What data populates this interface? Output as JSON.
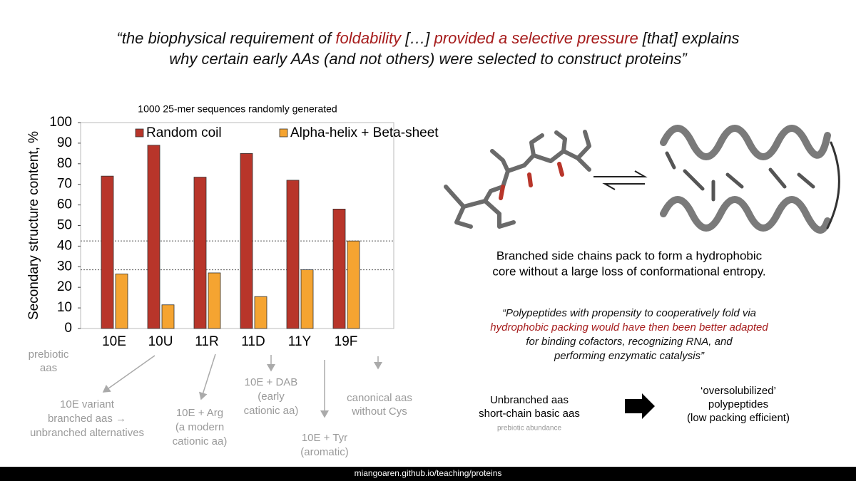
{
  "quote": {
    "lines": [
      [
        {
          "text": "“the biophysical requirement of ",
          "color": "#111111"
        },
        {
          "text": "foldability",
          "color": "#a61c1c"
        },
        {
          "text": " […] ",
          "color": "#111111"
        },
        {
          "text": "provided a selective pressure",
          "color": "#a61c1c"
        },
        {
          "text": " [that] explains",
          "color": "#111111"
        }
      ],
      [
        {
          "text": "why certain early AAs (and not others) were selected to construct proteins”",
          "color": "#111111"
        }
      ]
    ]
  },
  "chart_data": {
    "type": "bar",
    "title": "1000 25-mer sequences randomly generated",
    "y_label": "Secondary structure content, %",
    "categories": [
      "10E",
      "10U",
      "11R",
      "11D",
      "11Y",
      "19F"
    ],
    "series": [
      {
        "name": "Random coil",
        "color": "#b8352a",
        "values": [
          74,
          89,
          73.5,
          85,
          72,
          58
        ]
      },
      {
        "name": "Alpha-helix + Beta-sheet",
        "color": "#f5a431",
        "values": [
          26.5,
          11.5,
          27,
          15.5,
          28.5,
          42.5
        ]
      }
    ],
    "reference_lines": [
      42.5,
      28.5
    ],
    "ylim": [
      0,
      100
    ],
    "yticks": [
      0,
      10,
      20,
      30,
      40,
      50,
      60,
      70,
      80,
      90,
      100
    ]
  },
  "annotations": [
    {
      "lines": [
        "prebiotic",
        "aas"
      ]
    },
    {
      "lines": [
        "10E variant",
        "branched aas →",
        "unbranched alternatives"
      ]
    },
    {
      "lines": [
        "10E + Arg",
        "(a modern",
        "cationic aa)"
      ]
    },
    {
      "lines": [
        "10E + DAB",
        "(early",
        "cationic aa)"
      ]
    },
    {
      "lines": [
        "10E + Tyr",
        "(aromatic)"
      ]
    },
    {
      "lines": [
        "canonical aas",
        "without Cys"
      ]
    }
  ],
  "caption": [
    "Branched side chains pack to form a hydrophobic",
    "core without a large loss of conformational entropy."
  ],
  "quote2": {
    "lines": [
      [
        {
          "text": "“Polypeptides with propensity to cooperatively fold via",
          "color": "#111111"
        }
      ],
      [
        {
          "text": "hydrophobic packing would have then been better adapted",
          "color": "#a61c1c"
        }
      ],
      [
        {
          "text": "for binding cofactors, recognizing RNA, and",
          "color": "#111111"
        }
      ],
      [
        {
          "text": "performing enzymatic catalysis”",
          "color": "#111111"
        }
      ]
    ]
  },
  "left_box": {
    "lines": [
      "Unbranched aas",
      "short-chain basic aas"
    ],
    "note": "prebiotic abundance"
  },
  "right_box": {
    "lines": [
      "‘oversolubilized’",
      "polypeptides",
      "(low packing efficient)"
    ]
  },
  "footer": "miangoaren.github.io/teaching/proteins"
}
